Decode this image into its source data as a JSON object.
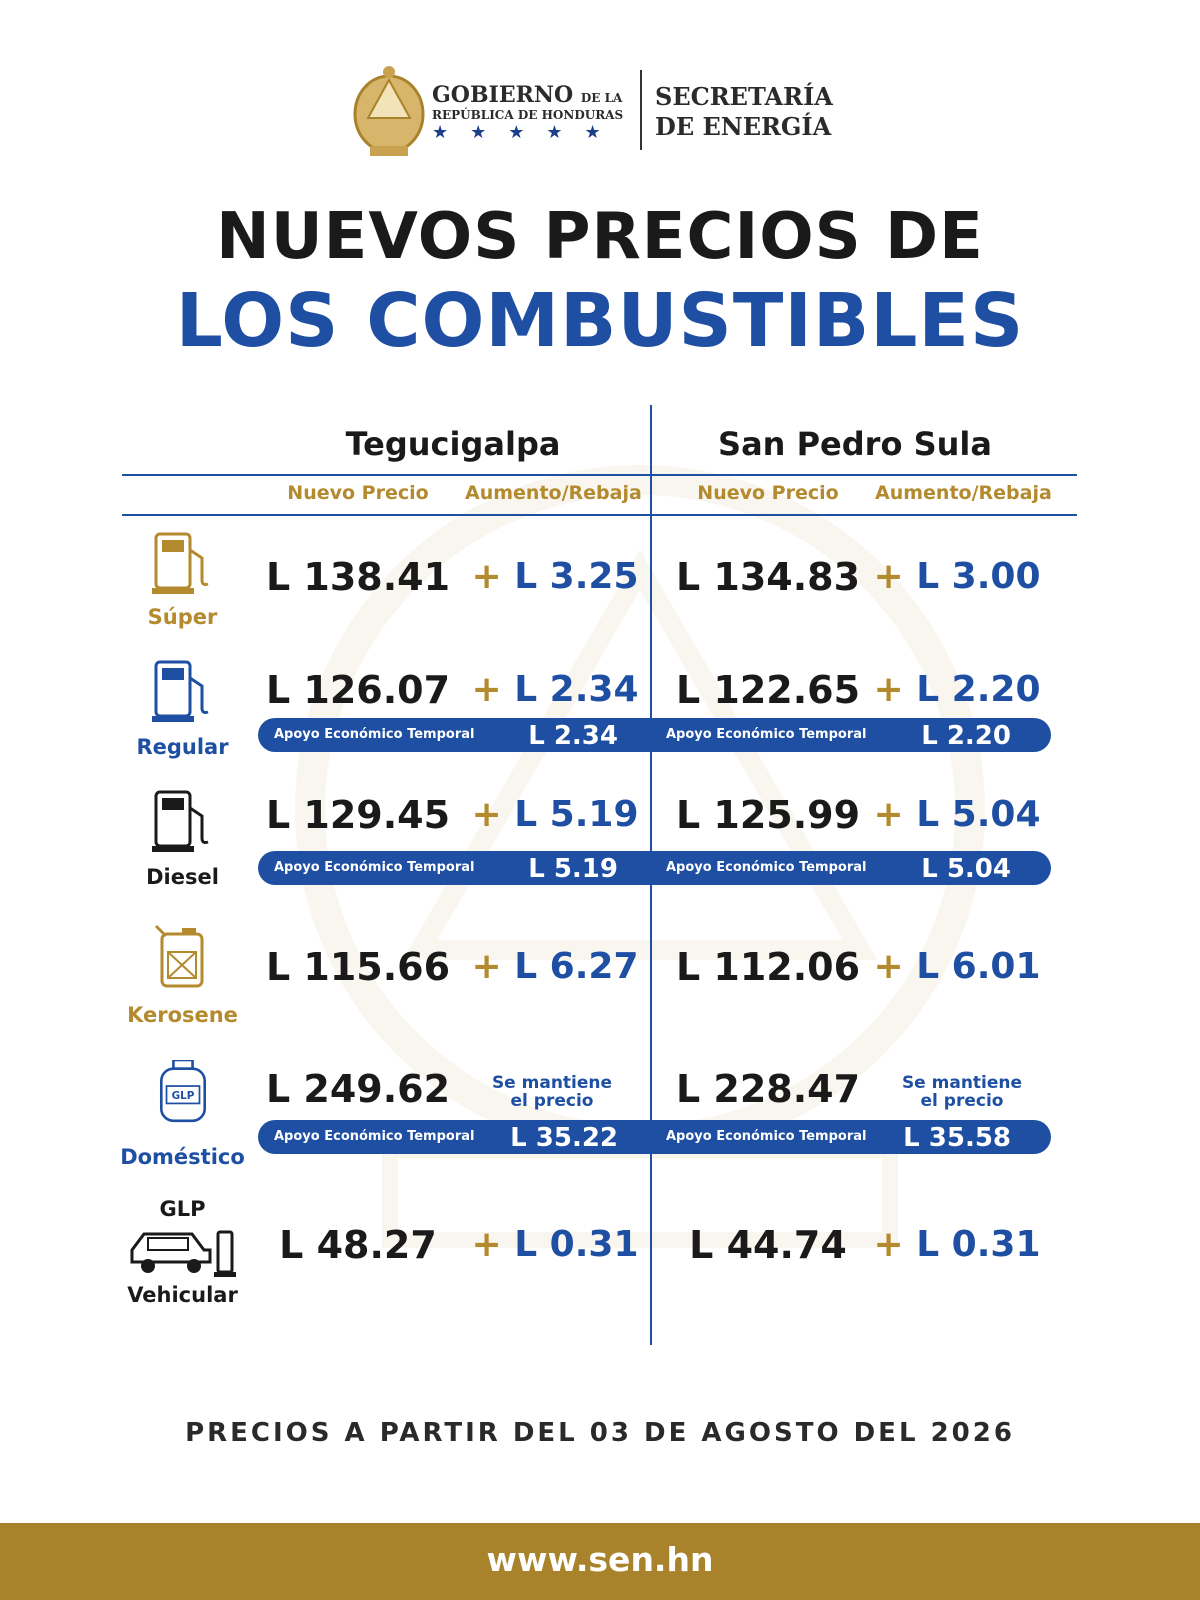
{
  "header": {
    "gov_line1": "GOBIERNO",
    "gov_line1_small": "DE LA",
    "gov_line2": "REPÚBLICA DE HONDURAS",
    "gov_stars": "★★★★★",
    "secretaria_line1": "SECRETARÍA",
    "secretaria_line2": "DE ENERGÍA"
  },
  "title": {
    "line1": "NUEVOS PRECIOS DE",
    "line2": "LOS COMBUSTIBLES"
  },
  "table": {
    "cities": [
      "Tegucigalpa",
      "San Pedro Sula"
    ],
    "col_price": "Nuevo Precio",
    "col_change": "Aumento/Rebaja",
    "support_label": "Apoyo Económico Temporal",
    "keep_line1": "Se mantiene",
    "keep_line2": "el precio",
    "rows": [
      {
        "fuel": "Súper",
        "teg_price": "L 138.41",
        "teg_change": "L 3.25",
        "sps_price": "L 134.83",
        "sps_change": "L 3.00"
      },
      {
        "fuel": "Regular",
        "teg_price": "L 126.07",
        "teg_change": "L 2.34",
        "sps_price": "L 122.65",
        "sps_change": "L 2.20",
        "teg_support": "L 2.34",
        "sps_support": "L 2.20"
      },
      {
        "fuel": "Diesel",
        "teg_price": "L 129.45",
        "teg_change": "L 5.19",
        "sps_price": "L 125.99",
        "sps_change": "L 5.04",
        "teg_support": "L 5.19",
        "sps_support": "L 5.04"
      },
      {
        "fuel": "Kerosene",
        "teg_price": "L 115.66",
        "teg_change": "L 6.27",
        "sps_price": "L 112.06",
        "sps_change": "L 6.01"
      },
      {
        "fuel": "Doméstico",
        "icon_text": "GLP",
        "teg_price": "L 249.62",
        "sps_price": "L 228.47",
        "teg_support": "L 35.22",
        "sps_support": "L 35.58"
      },
      {
        "fuel_top": "GLP",
        "fuel": "Vehicular",
        "teg_price": "L 48.27",
        "teg_change": "L 0.31",
        "sps_price": "L 44.74",
        "sps_change": "L 0.31"
      }
    ],
    "plus": "+"
  },
  "footer": {
    "note": "PRECIOS A PARTIR DEL 03 DE AGOSTO DEL 2026",
    "url": "www.sen.hn"
  },
  "colors": {
    "blue": "#1e4fa3",
    "gold": "#b48a2e",
    "footer_bar": "#a9832b"
  },
  "icons": {
    "seal": "honduras-seal-icon",
    "super": "fuel-pump-icon",
    "regular": "fuel-pump-icon",
    "diesel": "fuel-pump-icon",
    "kerosene": "jerrycan-icon",
    "domestico": "gas-cylinder-icon",
    "vehicular": "car-gas-icon"
  }
}
